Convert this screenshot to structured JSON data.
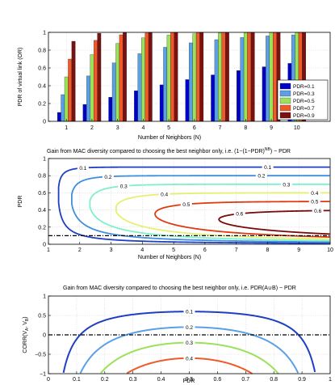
{
  "chart_data": [
    {
      "type": "bar",
      "title": "",
      "xlabel": "Number of Neighbors (N)",
      "ylabel": "PDR of virtual link (OR)",
      "categories": [
        "1",
        "2",
        "3",
        "4",
        "5",
        "6",
        "7",
        "8",
        "9",
        "10"
      ],
      "ylim": [
        0,
        1
      ],
      "yticks": [
        "0",
        "0.2",
        "0.4",
        "0.6",
        "0.8",
        "1"
      ],
      "legend_position": "bottom-right",
      "series": [
        {
          "name": "PDR=0.1",
          "color": "#0000c8",
          "values": [
            0.1,
            0.19,
            0.271,
            0.344,
            0.41,
            0.469,
            0.522,
            0.57,
            0.613,
            0.651
          ]
        },
        {
          "name": "PDR=0.3",
          "color": "#5aa0e6",
          "values": [
            0.3,
            0.51,
            0.657,
            0.76,
            0.832,
            0.882,
            0.918,
            0.942,
            0.96,
            0.972
          ]
        },
        {
          "name": "PDR=0.5",
          "color": "#9be15a",
          "values": [
            0.5,
            0.75,
            0.875,
            0.938,
            0.969,
            0.984,
            0.992,
            0.996,
            0.998,
            0.999
          ]
        },
        {
          "name": "PDR=0.7",
          "color": "#f05a28",
          "values": [
            0.7,
            0.91,
            0.973,
            0.992,
            0.998,
            0.999,
            1.0,
            1.0,
            1.0,
            1.0
          ]
        },
        {
          "name": "PDR=0.9",
          "color": "#7a1010",
          "values": [
            0.9,
            0.99,
            0.999,
            1.0,
            1.0,
            1.0,
            1.0,
            1.0,
            1.0,
            1.0
          ]
        }
      ]
    },
    {
      "type": "line",
      "title": "Gain from MAC diversity compared to choosing the best neighbor only, i.e. (1−(1−PDR)",
      "title_sup": "NB",
      "title_end": ") − PDR",
      "xlabel": "Number of Neighbors (N)",
      "ylabel": "PDR",
      "xlim": [
        1,
        10
      ],
      "ylim": [
        0,
        1
      ],
      "xticks": [
        "1",
        "2",
        "3",
        "4",
        "5",
        "6",
        "7",
        "8",
        "9",
        "10"
      ],
      "yticks": [
        "0",
        "0.2",
        "0.4",
        "0.6",
        "0.8",
        "1"
      ],
      "reference_line": {
        "y": 0.1,
        "style": "dash-dot"
      },
      "contour_levels": [
        {
          "level": 0.1,
          "label": "0.1",
          "color": "#1f3fc2"
        },
        {
          "level": 0.2,
          "label": "0.2",
          "color": "#3f8fe0"
        },
        {
          "level": 0.3,
          "label": "0.3",
          "color": "#7ff0c8"
        },
        {
          "level": 0.4,
          "label": "0.4",
          "color": "#e6f070"
        },
        {
          "level": 0.5,
          "label": "0.5",
          "color": "#e03a10"
        },
        {
          "level": 0.6,
          "label": "0.6",
          "color": "#7a0a0a"
        }
      ]
    },
    {
      "type": "line",
      "title": "Gain from MAC diversity compared to choosing the best neighbor only, i.e. PDR(A∪B) − PDR",
      "xlabel": "PDR",
      "ylabel": "CORR(V",
      "ylabel_sub1": "A",
      "ylabel_mid": ", V",
      "ylabel_sub2": "B",
      "ylabel_end": ")",
      "xlim": [
        0,
        1
      ],
      "ylim": [
        -1,
        1
      ],
      "xticks": [
        "0",
        "0.1",
        "0.2",
        "0.3",
        "0.4",
        "0.5",
        "0.6",
        "0.7",
        "0.8",
        "0.9",
        "1"
      ],
      "yticks": [
        "−1",
        "−0.5",
        "0",
        "0.5",
        "1"
      ],
      "reference_line": {
        "y": 0,
        "style": "dash-dot"
      },
      "contour_levels": [
        {
          "level": 0.1,
          "label": "0.1",
          "color": "#1f3fc2"
        },
        {
          "level": 0.2,
          "label": "0.2",
          "color": "#5aa0e6"
        },
        {
          "level": 0.3,
          "label": "0.3",
          "color": "#9be15a"
        },
        {
          "level": 0.4,
          "label": "0.4",
          "color": "#f05a28"
        }
      ]
    }
  ]
}
